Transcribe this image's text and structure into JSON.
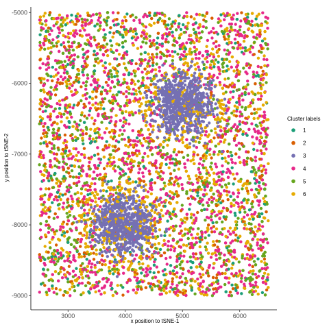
{
  "chart_data": {
    "type": "scatter",
    "xlabel": "x position to tSNE-1",
    "ylabel": "y position to tSNE-2",
    "xlim": [
      2350,
      6650
    ],
    "ylim": [
      -9200,
      -4920
    ],
    "x_ticks": [
      3000,
      4000,
      5000,
      6000
    ],
    "x_tick_labels": [
      "3000",
      "4000",
      "5000",
      "6000"
    ],
    "y_ticks": [
      -5000,
      -6000,
      -7000,
      -8000,
      -9000
    ],
    "y_tick_labels": [
      "-5000",
      "-6000",
      "-7000",
      "-8000",
      "-9000"
    ],
    "grid": false,
    "legend": {
      "title": "Cluster labels",
      "placement": "right",
      "entries": [
        {
          "label": "1",
          "color": "#1b9e77"
        },
        {
          "label": "2",
          "color": "#d95f02"
        },
        {
          "label": "3",
          "color": "#7570b3"
        },
        {
          "label": "4",
          "color": "#e7298a"
        },
        {
          "label": "5",
          "color": "#66a61e"
        },
        {
          "label": "6",
          "color": "#e6ab02"
        }
      ]
    },
    "point_region": {
      "x_range": [
        2500,
        6500
      ],
      "y_range": [
        -9000,
        -5000
      ]
    },
    "dense_regions": [
      {
        "series": "3",
        "center": [
          5000,
          -6300
        ],
        "note": "purple cluster upper-right"
      },
      {
        "series": "3",
        "center": [
          3950,
          -8000
        ],
        "note": "purple cluster lower-left"
      }
    ]
  }
}
